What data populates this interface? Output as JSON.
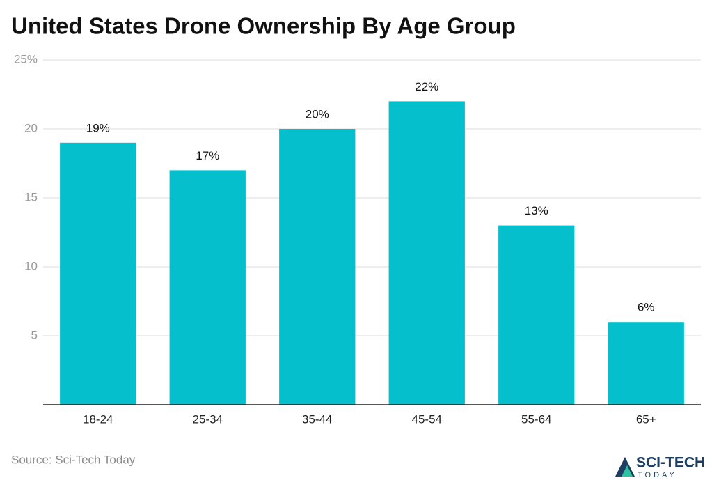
{
  "chart_data": {
    "type": "bar",
    "title": "United States Drone Ownership By Age Group",
    "categories": [
      "18-24",
      "25-34",
      "35-44",
      "45-54",
      "55-64",
      "65+"
    ],
    "values": [
      19,
      17,
      20,
      22,
      13,
      6
    ],
    "value_labels": [
      "19%",
      "17%",
      "20%",
      "22%",
      "13%",
      "6%"
    ],
    "color": "#06bfcc",
    "ylim": [
      0,
      25
    ],
    "yticks": [
      5,
      10,
      15,
      20,
      {
        "value": 25,
        "label": "25%"
      }
    ],
    "grid": true,
    "source": "Source: Sci-Tech Today"
  },
  "brand": {
    "name": "SCI-TECH",
    "tagline": "TODAY"
  }
}
